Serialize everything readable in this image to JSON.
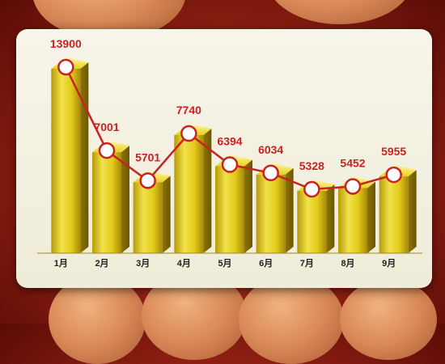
{
  "chart_data": {
    "type": "bar",
    "categories": [
      "1月",
      "2月",
      "3月",
      "4月",
      "5月",
      "6月",
      "7月",
      "8月",
      "9月"
    ],
    "values": [
      13900,
      7001,
      5701,
      7740,
      6394,
      6034,
      5328,
      5452,
      5955
    ],
    "value_labels": [
      "13900",
      "7001",
      "5701",
      "7740",
      "6394",
      "6034",
      "5328",
      "5452",
      "5955"
    ],
    "overlay_line": true,
    "title": "",
    "xlabel": "",
    "ylabel": "",
    "grid": false,
    "legend": "none",
    "colors": {
      "bar": "#e8d21c",
      "line": "#c82323",
      "label": "#c82323",
      "marker": "#ffffff"
    }
  }
}
